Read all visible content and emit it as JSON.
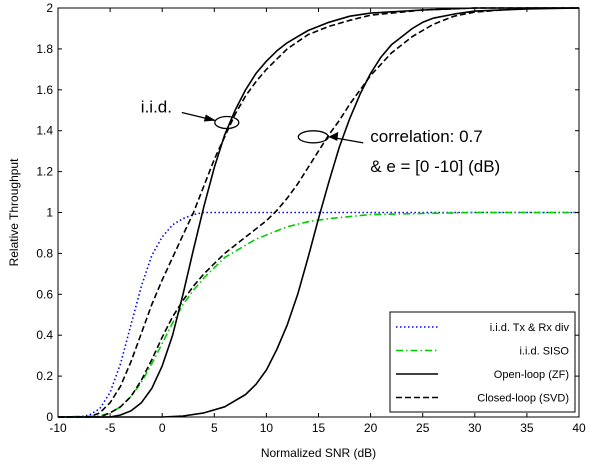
{
  "chart_data": {
    "type": "line",
    "title": "",
    "xlabel": "Normalized SNR (dB)",
    "ylabel": "Relative Throughput",
    "xlim": [
      -10,
      40
    ],
    "ylim": [
      0,
      2
    ],
    "xticks": [
      -10,
      -5,
      0,
      5,
      10,
      15,
      20,
      25,
      30,
      35,
      40
    ],
    "yticks": [
      0,
      0.2,
      0.4,
      0.6,
      0.8,
      1,
      1.2,
      1.4,
      1.6,
      1.8,
      2
    ],
    "xtick_labels": [
      "-10",
      "-5",
      "0",
      "5",
      "10",
      "15",
      "20",
      "25",
      "30",
      "35",
      "40"
    ],
    "ytick_labels": [
      "0",
      "0.2",
      "0.4",
      "0.6",
      "0.8",
      "1",
      "1.2",
      "1.4",
      "1.6",
      "1.8",
      "2"
    ],
    "grid": false,
    "legend_position": "bottom-right",
    "legend": [
      {
        "label": "i.i.d. Tx & Rx div",
        "color": "#0000ff",
        "style": "dotted"
      },
      {
        "label": "i.i.d. SISO",
        "color": "#00cc00",
        "style": "dashdot"
      },
      {
        "label": "Open-loop (ZF)",
        "color": "#000000",
        "style": "solid"
      },
      {
        "label": "Closed-loop (SVD)",
        "color": "#000000",
        "style": "dashed"
      }
    ],
    "annotations": [
      {
        "text": "i.i.d.",
        "x": 6.2,
        "y": 1.44
      },
      {
        "text": "correlation: 0.7",
        "x": 14.5,
        "y": 1.37
      },
      {
        "text": "& e = [0 -10] (dB)",
        "x": 14.5,
        "y": 1.37
      }
    ],
    "series": [
      {
        "color": "#0000ff",
        "style": "dotted",
        "width": 1.6,
        "x": [
          -10,
          -8,
          -7,
          -6,
          -5,
          -4,
          -3,
          -2,
          -1,
          0,
          1,
          2,
          3,
          4,
          5,
          6,
          7,
          8,
          10,
          15,
          20,
          25,
          30,
          35,
          40
        ],
        "y": [
          0,
          0,
          0.01,
          0.04,
          0.12,
          0.26,
          0.45,
          0.64,
          0.79,
          0.88,
          0.94,
          0.97,
          0.99,
          1.0,
          1.0,
          1.0,
          1.0,
          1.0,
          1.0,
          1.0,
          1.0,
          1.0,
          1.0,
          1.0,
          1.0
        ]
      },
      {
        "color": "#00cc00",
        "style": "dashdot",
        "width": 1.6,
        "x": [
          -10,
          -6,
          -5,
          -4,
          -3,
          -2,
          -1,
          0,
          1,
          2,
          3,
          4,
          5,
          6,
          7,
          8,
          9,
          10,
          11,
          12,
          14,
          16,
          18,
          20,
          25,
          30,
          35,
          40
        ],
        "y": [
          0,
          0.005,
          0.02,
          0.05,
          0.1,
          0.17,
          0.26,
          0.36,
          0.46,
          0.55,
          0.62,
          0.68,
          0.73,
          0.78,
          0.81,
          0.84,
          0.87,
          0.89,
          0.91,
          0.93,
          0.955,
          0.97,
          0.98,
          0.99,
          0.995,
          1.0,
          1.0,
          1.0
        ]
      },
      {
        "color": "#000000",
        "style": "solid",
        "width": 1.6,
        "x": [
          -10,
          -5,
          -4,
          -3,
          -2,
          -1,
          0,
          1,
          2,
          3,
          4,
          5,
          6,
          7,
          8,
          9,
          10,
          11,
          12,
          13,
          14,
          15,
          16,
          18,
          20,
          25,
          30,
          35,
          40
        ],
        "y": [
          0,
          0,
          0.01,
          0.03,
          0.07,
          0.14,
          0.25,
          0.4,
          0.6,
          0.82,
          1.03,
          1.22,
          1.38,
          1.5,
          1.6,
          1.68,
          1.74,
          1.79,
          1.83,
          1.86,
          1.89,
          1.91,
          1.93,
          1.96,
          1.975,
          1.99,
          2.0,
          2.0,
          2.0
        ]
      },
      {
        "color": "#000000",
        "style": "solid",
        "width": 1.6,
        "x": [
          -10,
          0,
          2,
          4,
          6,
          8,
          9,
          10,
          11,
          12,
          13,
          14,
          15,
          16,
          17,
          18,
          19,
          20,
          21,
          22,
          23,
          24,
          25,
          26,
          28,
          30,
          35,
          40
        ],
        "y": [
          0,
          0,
          0.005,
          0.02,
          0.05,
          0.11,
          0.16,
          0.23,
          0.33,
          0.45,
          0.6,
          0.78,
          0.97,
          1.15,
          1.32,
          1.46,
          1.58,
          1.68,
          1.76,
          1.82,
          1.86,
          1.9,
          1.93,
          1.95,
          1.97,
          1.985,
          1.995,
          2.0
        ]
      },
      {
        "color": "#000000",
        "style": "dashed",
        "width": 1.6,
        "x": [
          -10,
          -7,
          -6,
          -5,
          -4,
          -3,
          -2,
          -1,
          0,
          1,
          2,
          3,
          4,
          5,
          6,
          7,
          8,
          9,
          10,
          12,
          14,
          16,
          18,
          20,
          25,
          30,
          35,
          40
        ],
        "y": [
          0,
          0,
          0.02,
          0.07,
          0.15,
          0.27,
          0.41,
          0.55,
          0.67,
          0.78,
          0.89,
          1.0,
          1.13,
          1.26,
          1.37,
          1.48,
          1.57,
          1.64,
          1.7,
          1.8,
          1.87,
          1.91,
          1.94,
          1.965,
          1.99,
          2.0,
          2.0,
          2.0
        ]
      },
      {
        "color": "#000000",
        "style": "dashed",
        "width": 1.6,
        "x": [
          -10,
          -6,
          -5,
          -4,
          -3,
          -2,
          -1,
          0,
          1,
          2,
          3,
          4,
          5,
          6,
          7,
          8,
          9,
          10,
          11,
          12,
          13,
          14,
          15,
          16,
          17,
          18,
          20,
          22,
          24,
          26,
          28,
          30,
          35,
          40
        ],
        "y": [
          0,
          0,
          0.02,
          0.05,
          0.1,
          0.18,
          0.28,
          0.39,
          0.49,
          0.57,
          0.64,
          0.7,
          0.75,
          0.8,
          0.84,
          0.88,
          0.92,
          0.96,
          1.01,
          1.07,
          1.14,
          1.22,
          1.3,
          1.38,
          1.45,
          1.53,
          1.67,
          1.78,
          1.86,
          1.92,
          1.96,
          1.98,
          2.0,
          2.0
        ]
      }
    ]
  }
}
